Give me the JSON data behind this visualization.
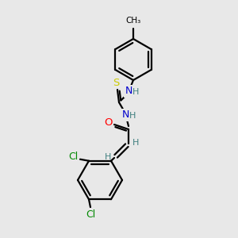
{
  "background_color": "#e8e8e8",
  "bond_color": "#000000",
  "atom_colors": {
    "N": "#0000cc",
    "O": "#ff0000",
    "S": "#cccc00",
    "Cl": "#008800",
    "C": "#000000",
    "H": "#408080"
  },
  "figsize": [
    3.0,
    3.0
  ],
  "dpi": 100,
  "lw": 1.6
}
